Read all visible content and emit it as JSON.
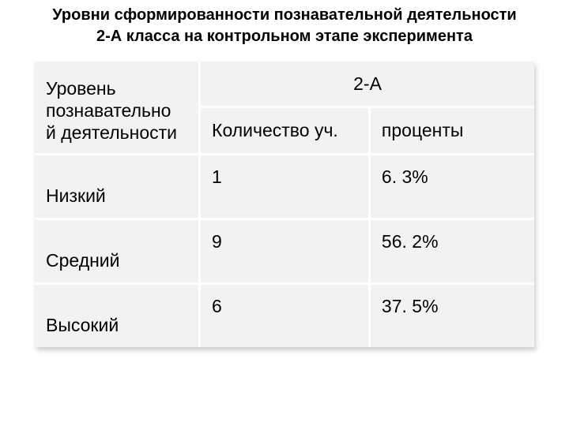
{
  "title_line1": "Уровни сформированности познавательной деятельности",
  "title_line2": "2-А класса на контрольном этапе эксперимента",
  "title_fontsize": 20,
  "title_color": "#000000",
  "table": {
    "header_main_line1": "Уровень",
    "header_main_line2": "познавательно",
    "header_main_line3": "й деятельности",
    "group_label": "2-А",
    "sub_headers": [
      "Количество уч.",
      "проценты"
    ],
    "rows": [
      {
        "label": "Низкий",
        "count": "1",
        "percent": "6. 3%"
      },
      {
        "label": "Средний",
        "count": "9",
        "percent": "56. 2%"
      },
      {
        "label": "Высокий",
        "count": "6",
        "percent": "37. 5%"
      }
    ],
    "cell_bg": "#f2f2f2",
    "divider_color": "#ffffff",
    "font_color": "#000000",
    "header_fontsize": 23,
    "body_fontsize": 23,
    "col_widths": [
      "33%",
      "34%",
      "33%"
    ]
  }
}
